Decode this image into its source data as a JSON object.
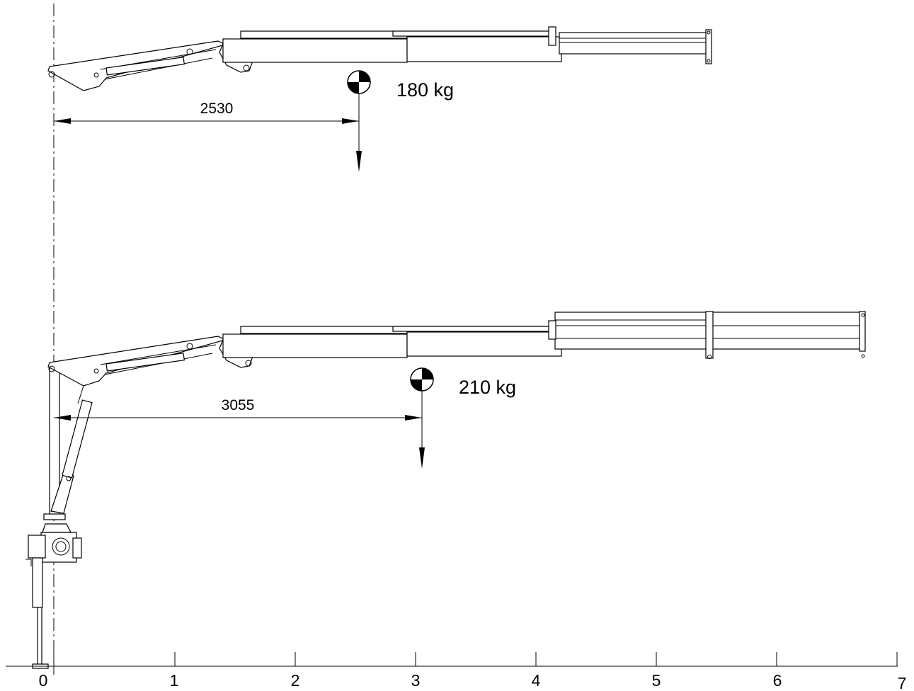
{
  "config_top": {
    "weight_label": "180 kg",
    "reach_label": "2530"
  },
  "config_bottom": {
    "weight_label": "210 kg",
    "reach_label": "3055"
  },
  "ruler": {
    "ticks": [
      "0",
      "1",
      "2",
      "3",
      "4",
      "5",
      "6",
      "7"
    ]
  }
}
